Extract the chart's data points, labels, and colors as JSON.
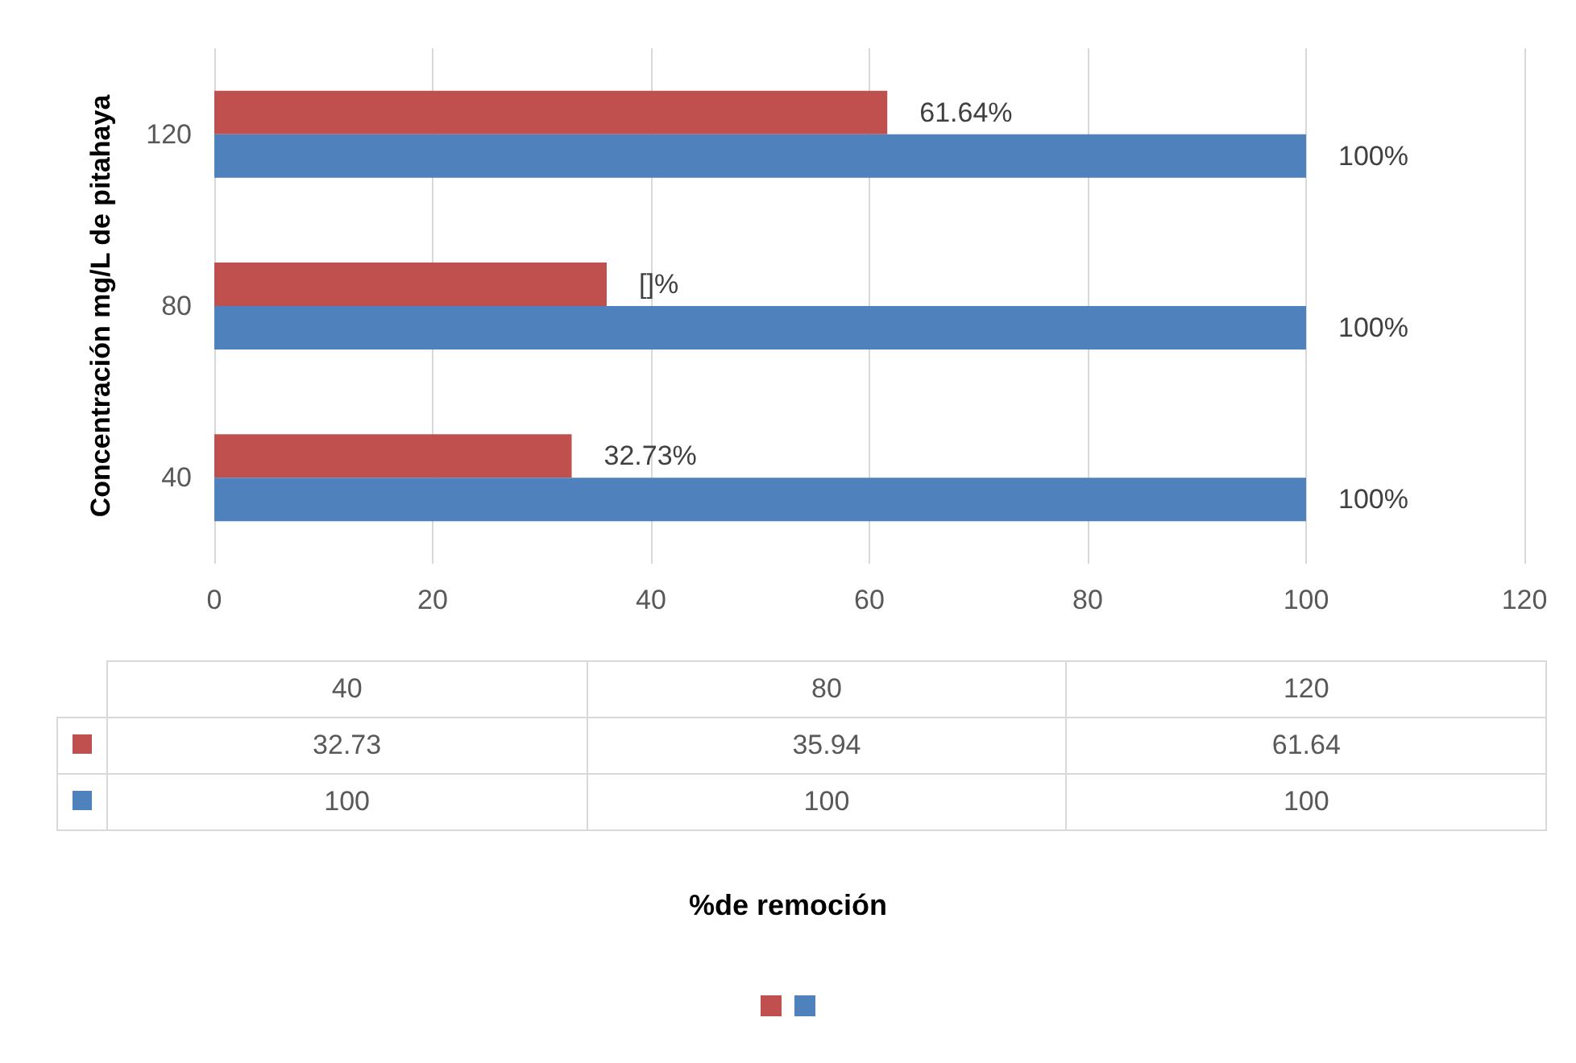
{
  "chart_data": {
    "type": "bar",
    "orientation": "horizontal",
    "ylabel": "Concentración mg/L de pitahaya",
    "annotations": [
      "%de remoción",
      "32.73",
      "35.94",
      "61.64",
      "100",
      "100",
      "100"
    ],
    "categories": [
      "120",
      "80",
      "40"
    ],
    "series": [
      {
        "color": "#c0504d",
        "values": [
          61.64,
          35.94,
          32.73
        ],
        "value_labels": [
          "61.64%",
          "[]%",
          "32.73%"
        ]
      },
      {
        "color": "#4f81bd",
        "values": [
          100,
          100,
          100
        ],
        "value_labels": [
          "100%",
          "100%",
          "100%"
        ]
      }
    ],
    "xlim": [
      0,
      120
    ],
    "xticks": [
      0,
      20,
      40,
      60,
      80,
      100,
      120
    ],
    "grid": "x"
  }
}
